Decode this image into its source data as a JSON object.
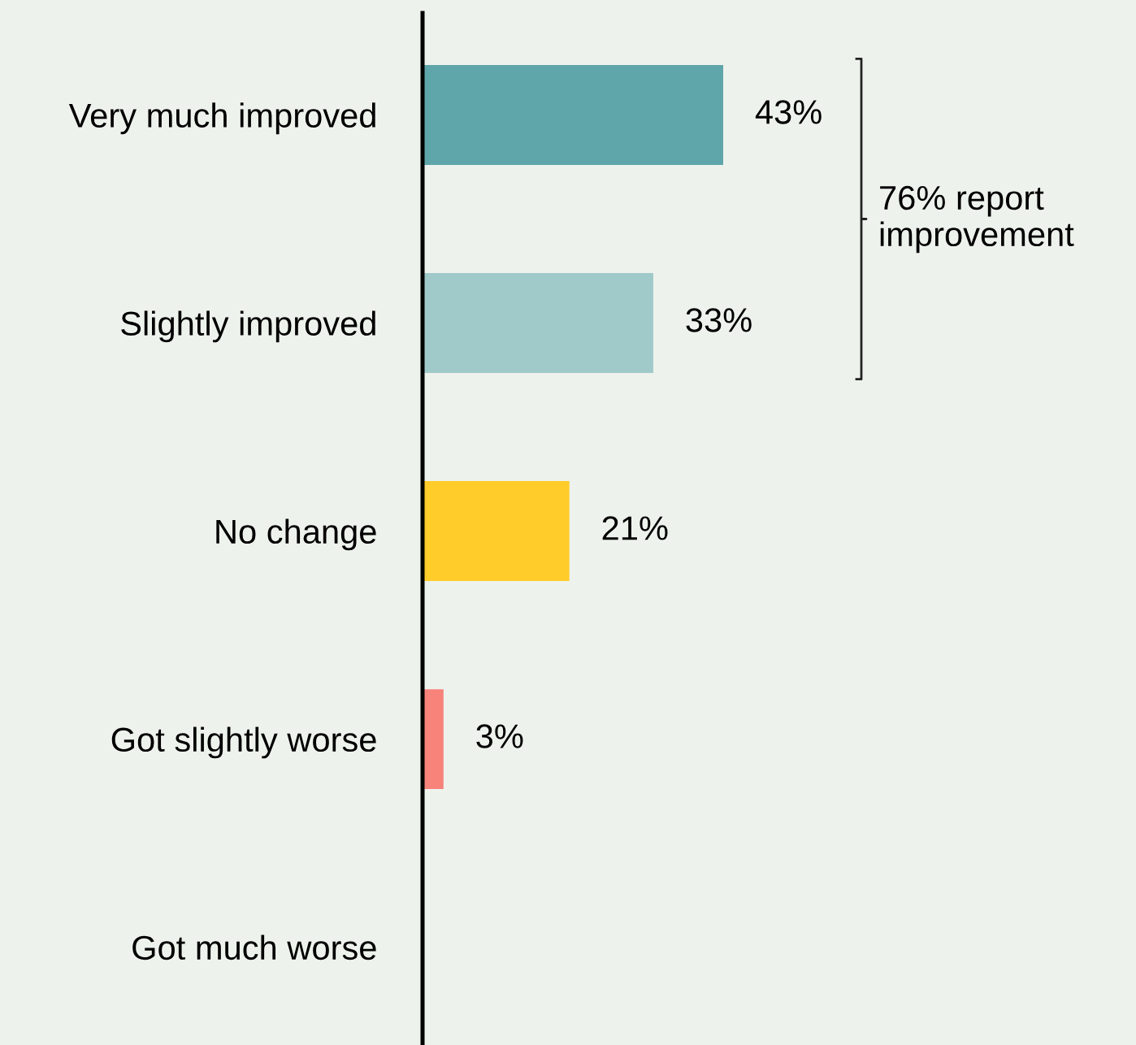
{
  "chart_data": {
    "type": "bar",
    "orientation": "horizontal",
    "categories": [
      "Very much improved",
      "Slightly improved",
      "No change",
      "Got slightly worse",
      "Got much worse"
    ],
    "values": [
      43,
      33,
      21,
      3,
      null
    ],
    "colors": [
      "#5fa6aa",
      "#a0c9ca",
      "#ffcc29",
      "#f7837a",
      null
    ],
    "value_labels": [
      "43%",
      "33%",
      "21%",
      "3%",
      null
    ],
    "tick_labels": "y",
    "grid": false,
    "legend": false,
    "annotations": [
      "76% report improvement"
    ]
  }
}
